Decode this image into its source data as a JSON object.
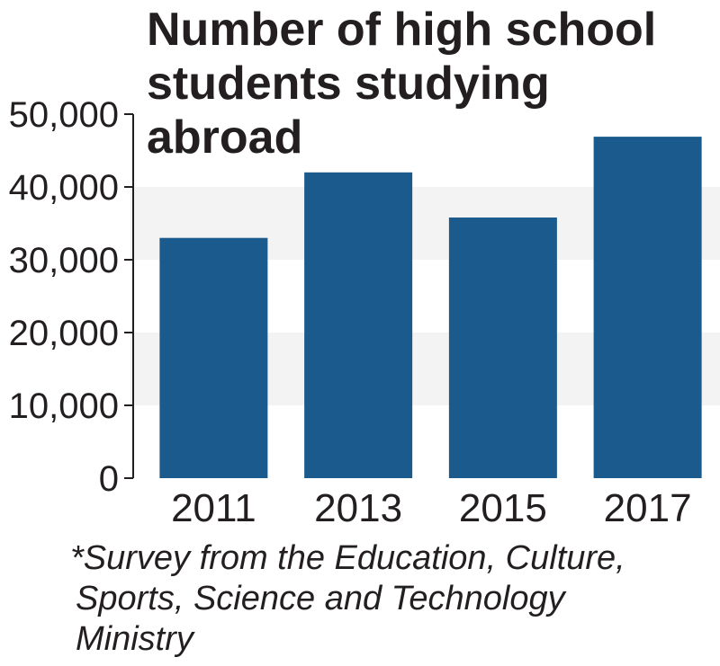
{
  "chart_data": {
    "type": "bar",
    "title_lines": [
      "Number of high school",
      "students studying",
      "abroad"
    ],
    "categories": [
      "2011",
      "2013",
      "2015",
      "2017"
    ],
    "values": [
      33000,
      42000,
      35800,
      46900
    ],
    "yticks": [
      "0",
      "10,000",
      "20,000",
      "30,000",
      "40,000",
      "50,000"
    ],
    "ylim": [
      0,
      50000
    ],
    "grid": "alternating bands",
    "legend": "none",
    "bar_color": "#1a5a8c",
    "band_color": "#f3f3f3",
    "note_lines": [
      "*Survey from the Education, Culture,",
      "Sports, Science and Technology",
      "Ministry"
    ]
  }
}
